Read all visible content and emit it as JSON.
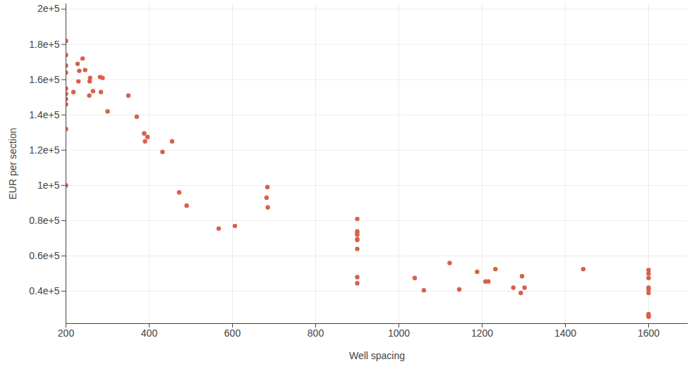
{
  "chart_data": {
    "type": "scatter",
    "x_label": "Well spacing",
    "y_label": "EUR per section",
    "color": "#d9604b",
    "grid": true,
    "xlim": [
      200,
      1695
    ],
    "xticks": [
      200,
      400,
      600,
      800,
      1000,
      1200,
      1400,
      1600
    ],
    "ylim": [
      21600,
      203000
    ],
    "yticks": [
      {
        "value": 40000,
        "label": "0.4e+5"
      },
      {
        "value": 60000,
        "label": "0.6e+5"
      },
      {
        "value": 80000,
        "label": "0.8e+5"
      },
      {
        "value": 100000,
        "label": "1e+5"
      },
      {
        "value": 120000,
        "label": "1.2e+5"
      },
      {
        "value": 140000,
        "label": "1.4e+5"
      },
      {
        "value": 160000,
        "label": "1.6e+5"
      },
      {
        "value": 180000,
        "label": "1.8e+5"
      },
      {
        "value": 200000,
        "label": "2e+5"
      }
    ],
    "x": [
      200,
      200,
      200,
      200,
      200,
      200,
      200,
      200,
      200,
      200,
      218,
      228,
      230,
      232,
      240,
      246,
      256,
      257,
      258,
      265,
      282,
      284,
      288,
      300,
      350,
      370,
      388,
      390,
      396,
      432,
      455,
      472,
      490,
      567,
      606,
      682,
      684,
      685,
      900,
      900,
      900,
      900,
      900,
      900,
      900,
      900,
      900,
      1038,
      1060,
      1122,
      1145,
      1188,
      1208,
      1215,
      1232,
      1275,
      1293,
      1296,
      1302,
      1443,
      1600,
      1600,
      1600,
      1600,
      1600,
      1600,
      1600,
      1600,
      1600
    ],
    "values": [
      182000,
      174000,
      168000,
      164000,
      155000,
      152000,
      149000,
      146000,
      132000,
      100000,
      153000,
      169000,
      159000,
      165000,
      172000,
      165500,
      151000,
      159000,
      161000,
      153500,
      161500,
      153000,
      161000,
      142000,
      151000,
      139000,
      129500,
      125000,
      127500,
      119000,
      125000,
      96000,
      88500,
      75500,
      77000,
      93000,
      99000,
      87500,
      81000,
      74000,
      73000,
      72000,
      69500,
      69000,
      64000,
      48000,
      44500,
      47500,
      40500,
      56000,
      41000,
      51000,
      45500,
      45500,
      52500,
      42000,
      39000,
      48500,
      42000,
      52500,
      52000,
      50000,
      47500,
      42000,
      41000,
      39000,
      27000,
      26000,
      25500
    ]
  }
}
